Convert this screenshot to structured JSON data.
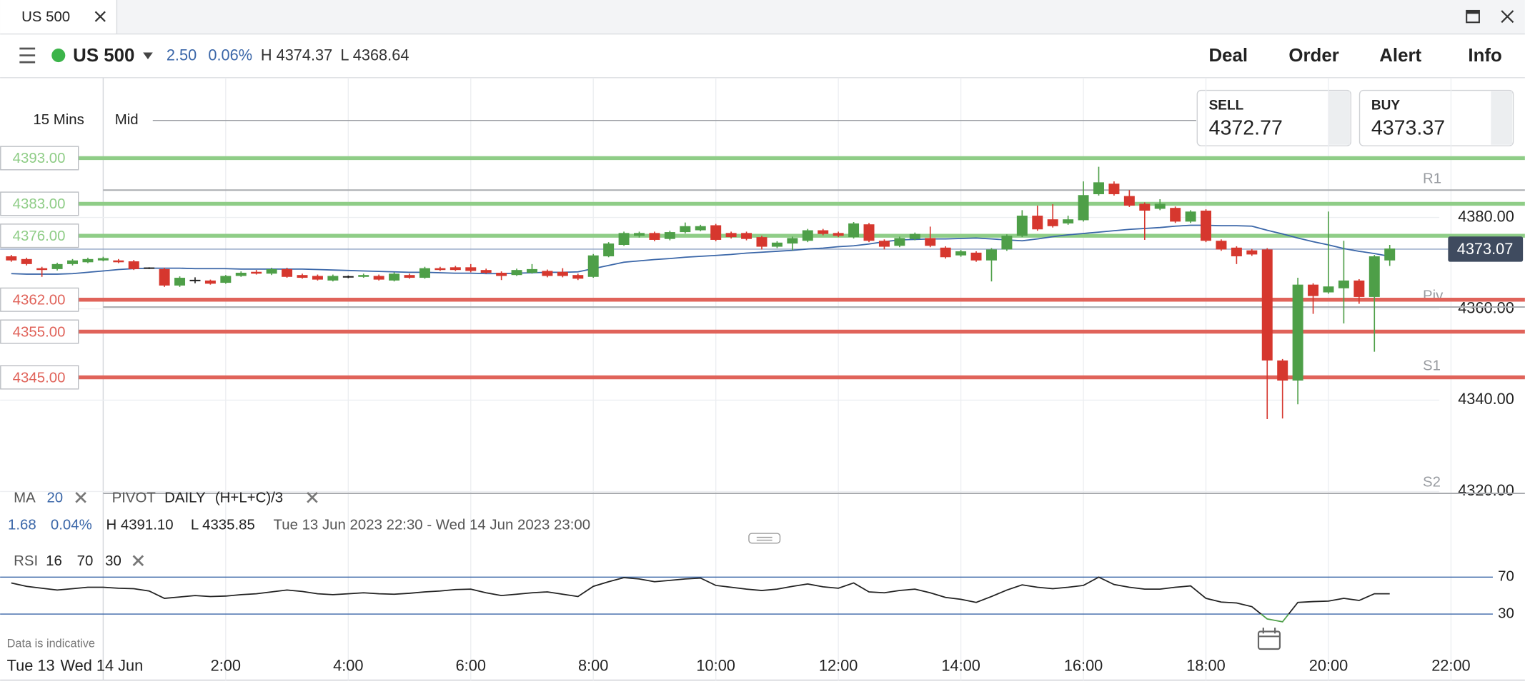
{
  "window": {
    "tab": "US 500"
  },
  "header": {
    "instrument": "US 500",
    "change": "2.50",
    "change_pct": "0.06%",
    "high": "H 4374.37",
    "low": "L 4368.64",
    "menu": [
      "Deal",
      "Order",
      "Alert",
      "Info"
    ]
  },
  "quotes": {
    "sell_label": "SELL",
    "sell": "4372.77",
    "buy_label": "BUY",
    "buy": "4373.37"
  },
  "chart_data": {
    "type": "candlestick",
    "interval": "15 Mins",
    "price_type": "Mid",
    "up_color": "#4e9f48",
    "down_color": "#d6372e",
    "open": [
      4371.5,
      4370.9,
      4368.9,
      4368.7,
      4369.8,
      4370.2,
      4370.6,
      4370.6,
      4370.4,
      4368.9,
      4368.7,
      4365.1,
      4366.2,
      4366.2,
      4365.7,
      4367.2,
      4368.1,
      4367.7,
      4368.7,
      4367.4,
      4367.2,
      4366.2,
      4367.0,
      4367.0,
      4367.2,
      4366.2,
      4367.4,
      4366.8,
      4368.9,
      4369.1,
      4369.1,
      4368.5,
      4367.9,
      4367.4,
      4367.9,
      4368.3,
      4368.1,
      4367.4,
      4367.0,
      4371.5,
      4374.0,
      4376.0,
      4376.6,
      4375.3,
      4376.8,
      4377.2,
      4378.3,
      4376.6,
      4376.6,
      4375.7,
      4373.6,
      4374.3,
      4374.9,
      4377.2,
      4376.6,
      4375.7,
      4378.5,
      4374.9,
      4373.8,
      4375.3,
      4375.5,
      4373.4,
      4371.7,
      4372.3,
      4370.6,
      4373.0,
      4376.0,
      4380.4,
      4379.6,
      4378.7,
      4379.4,
      4385.1,
      4387.4,
      4384.7,
      4383.0,
      4381.9,
      4382.1,
      4379.1,
      4381.5,
      4374.9,
      4373.4,
      4372.8,
      4373.0,
      4348.7,
      4344.3,
      4365.3,
      4363.6,
      4364.5,
      4366.2,
      4362.6,
      4370.6
    ],
    "high": [
      4371.8,
      4371.2,
      4369.2,
      4370.1,
      4370.9,
      4371.2,
      4371.4,
      4370.9,
      4370.7,
      4369.1,
      4369.0,
      4367.1,
      4366.9,
      4366.4,
      4367.4,
      4368.2,
      4368.5,
      4369.0,
      4369.0,
      4367.7,
      4367.5,
      4367.5,
      4367.3,
      4367.7,
      4367.5,
      4368.0,
      4367.7,
      4369.2,
      4369.2,
      4369.4,
      4369.8,
      4368.8,
      4368.2,
      4368.8,
      4369.8,
      4368.6,
      4368.9,
      4367.7,
      4372.0,
      4374.6,
      4376.9,
      4376.9,
      4376.9,
      4377.1,
      4378.9,
      4378.4,
      4378.6,
      4376.9,
      4376.9,
      4376.0,
      4374.8,
      4375.8,
      4377.5,
      4377.5,
      4376.9,
      4379.0,
      4378.8,
      4375.2,
      4375.8,
      4376.7,
      4378.0,
      4373.7,
      4372.9,
      4372.6,
      4373.3,
      4376.3,
      4381.6,
      4382.6,
      4382.9,
      4380.4,
      4387.9,
      4391.1,
      4387.9,
      4386.0,
      4383.3,
      4384.0,
      4382.4,
      4381.6,
      4381.8,
      4375.2,
      4373.7,
      4373.1,
      4373.3,
      4349.0,
      4366.8,
      4365.6,
      4381.3,
      4374.9,
      4366.5,
      4371.8,
      4374.0
    ],
    "low": [
      4370.3,
      4369.5,
      4367.0,
      4368.4,
      4369.5,
      4370.0,
      4370.4,
      4370.0,
      4368.5,
      4368.7,
      4364.8,
      4364.8,
      4365.6,
      4365.3,
      4365.5,
      4367.0,
      4367.5,
      4367.4,
      4366.8,
      4366.6,
      4366.2,
      4366.0,
      4366.7,
      4366.8,
      4366.2,
      4366.0,
      4366.6,
      4366.6,
      4368.3,
      4368.3,
      4368.0,
      4367.7,
      4366.3,
      4367.2,
      4367.7,
      4366.9,
      4366.9,
      4366.3,
      4366.8,
      4371.3,
      4373.8,
      4375.6,
      4374.8,
      4375.0,
      4376.5,
      4377.0,
      4374.8,
      4375.4,
      4375.0,
      4373.0,
      4373.3,
      4372.8,
      4374.6,
      4376.1,
      4375.7,
      4375.4,
      4374.6,
      4373.0,
      4373.5,
      4375.0,
      4373.5,
      4371.0,
      4371.4,
      4370.3,
      4366.0,
      4372.7,
      4375.7,
      4377.1,
      4377.8,
      4378.4,
      4379.1,
      4384.8,
      4384.8,
      4382.3,
      4375.1,
      4381.6,
      4378.8,
      4378.8,
      4374.6,
      4372.7,
      4369.8,
      4371.6,
      4335.85,
      4336.0,
      4339.1,
      4358.9,
      4363.3,
      4356.8,
      4361.1,
      4350.6,
      4369.4
    ],
    "close": [
      4370.6,
      4369.8,
      4368.5,
      4369.8,
      4370.6,
      4370.9,
      4371.1,
      4370.2,
      4368.7,
      4368.9,
      4365.1,
      4366.8,
      4366.2,
      4365.5,
      4367.2,
      4367.9,
      4367.7,
      4368.7,
      4367.0,
      4366.8,
      4366.4,
      4367.2,
      4367.0,
      4367.4,
      4366.4,
      4367.7,
      4366.8,
      4368.9,
      4368.5,
      4368.5,
      4368.3,
      4367.9,
      4367.2,
      4368.5,
      4368.7,
      4367.2,
      4367.2,
      4366.6,
      4371.7,
      4374.3,
      4376.6,
      4376.6,
      4375.1,
      4376.8,
      4378.1,
      4378.1,
      4375.1,
      4375.7,
      4375.3,
      4373.6,
      4374.5,
      4375.5,
      4377.2,
      4376.4,
      4376.0,
      4378.7,
      4374.9,
      4373.6,
      4375.5,
      4376.4,
      4373.8,
      4371.3,
      4372.6,
      4370.6,
      4373.0,
      4376.0,
      4380.4,
      4377.4,
      4378.1,
      4379.6,
      4384.9,
      4387.7,
      4385.1,
      4382.6,
      4381.5,
      4383.0,
      4379.1,
      4381.3,
      4374.9,
      4373.0,
      4371.5,
      4371.9,
      4348.7,
      4344.3,
      4365.3,
      4362.8,
      4364.9,
      4366.2,
      4362.6,
      4371.5,
      4373.2
    ],
    "ylim": [
      4317.0,
      4410.6
    ],
    "yticks": [
      {
        "value": 4380,
        "label": "4380.00"
      },
      {
        "value": 4360,
        "label": "4360.00"
      },
      {
        "value": 4340,
        "label": "4340.00"
      },
      {
        "value": 4320,
        "label": "4320.00"
      }
    ],
    "grid": true,
    "current_price": 4373.07,
    "alert_levels": [
      {
        "value": 4393,
        "label": "4393.00",
        "color": "#8fcd87"
      },
      {
        "value": 4383,
        "label": "4383.00",
        "color": "#8fcd87"
      },
      {
        "value": 4376,
        "label": "4376.00",
        "color": "#8fcd87"
      },
      {
        "value": 4362,
        "label": "4362.00",
        "color": "#e0635a"
      },
      {
        "value": 4355,
        "label": "4355.00",
        "color": "#e0635a"
      },
      {
        "value": 4345,
        "label": "4345.00",
        "color": "#e0635a"
      }
    ],
    "pivots": {
      "names": [
        "R1",
        "Piv",
        "S1",
        "S2"
      ],
      "values": [
        4386.0,
        4360.4,
        4345.1,
        4319.6
      ],
      "color": "#a9abaf"
    },
    "ma": {
      "name": "MA",
      "period": 20,
      "color": "#3a66a8",
      "values": [
        4367.7,
        4367.6,
        4367.6,
        4367.6,
        4367.7,
        4368.0,
        4368.3,
        4368.6,
        4368.8,
        4368.9,
        4368.9,
        4368.9,
        4368.8,
        4368.8,
        4368.8,
        4368.7,
        4368.7,
        4368.7,
        4368.7,
        4368.7,
        4368.6,
        4368.5,
        4368.4,
        4368.3,
        4368.2,
        4368.1,
        4368.0,
        4368.0,
        4367.9,
        4367.8,
        4367.8,
        4367.7,
        4367.7,
        4367.8,
        4367.9,
        4368.0,
        4368.0,
        4368.1,
        4368.8,
        4369.5,
        4370.2,
        4370.5,
        4370.8,
        4371.0,
        4371.3,
        4371.5,
        4371.7,
        4371.9,
        4372.2,
        4372.4,
        4372.6,
        4372.8,
        4373.1,
        4373.3,
        4373.6,
        4373.8,
        4374.2,
        4374.7,
        4375.1,
        4375.2,
        4375.3,
        4375.3,
        4375.4,
        4375.5,
        4375.3,
        4375.1,
        4374.9,
        4375.3,
        4375.8,
        4376.2,
        4376.5,
        4376.8,
        4377.1,
        4377.4,
        4377.6,
        4377.8,
        4378.1,
        4378.3,
        4378.3,
        4378.2,
        4378.2,
        4378.1,
        4377.2,
        4376.4,
        4375.5,
        4374.7,
        4374.0,
        4373.2,
        4372.6,
        4372.1,
        4371.5
      ]
    },
    "pivot_legend": {
      "name": "PIVOT",
      "period": "DAILY",
      "formula": "(H+L+C)/3"
    },
    "stats": {
      "change": "1.68",
      "change_pct": "0.04%",
      "high": "H 4391.10",
      "low": "L 4335.85",
      "range": "Tue 13 Jun 2023 22:30 - Wed 14 Jun 2023 23:00"
    },
    "rsi": {
      "name": "RSI",
      "period": 16,
      "upper": 70,
      "lower": 30,
      "ylim": [
        0,
        100
      ],
      "color": "#222222",
      "low_color": "#4e9f48",
      "values": [
        63.7,
        60,
        58,
        56,
        57.5,
        59,
        59,
        58,
        57.5,
        55,
        47,
        48.5,
        50,
        49,
        49.5,
        51,
        52,
        54,
        56,
        54.5,
        52,
        51,
        52,
        53,
        52,
        51.5,
        52.5,
        54,
        55,
        56.5,
        57,
        53,
        50,
        51.5,
        53,
        54,
        51.5,
        49,
        60,
        65,
        69.5,
        68,
        65,
        66.5,
        68,
        69,
        61,
        59,
        57,
        55.5,
        57,
        60,
        62.6,
        59.5,
        58,
        63.7,
        54,
        53,
        55.5,
        57,
        53,
        48,
        46,
        42.6,
        49,
        56,
        61.6,
        59,
        57.5,
        59,
        61,
        70,
        62,
        59,
        57,
        57,
        59,
        60.5,
        47,
        43,
        42,
        38,
        24.7,
        21.6,
        42.6,
        43.5,
        44,
        47,
        44.7,
        52,
        52
      ]
    },
    "xlabels": [
      "Tue 13",
      "Wed 14 Jun"
    ],
    "xticks": [
      "2:00",
      "4:00",
      "6:00",
      "8:00",
      "10:00",
      "12:00",
      "14:00",
      "16:00",
      "18:00",
      "20:00",
      "22:00"
    ],
    "note": "Data is indicative"
  }
}
